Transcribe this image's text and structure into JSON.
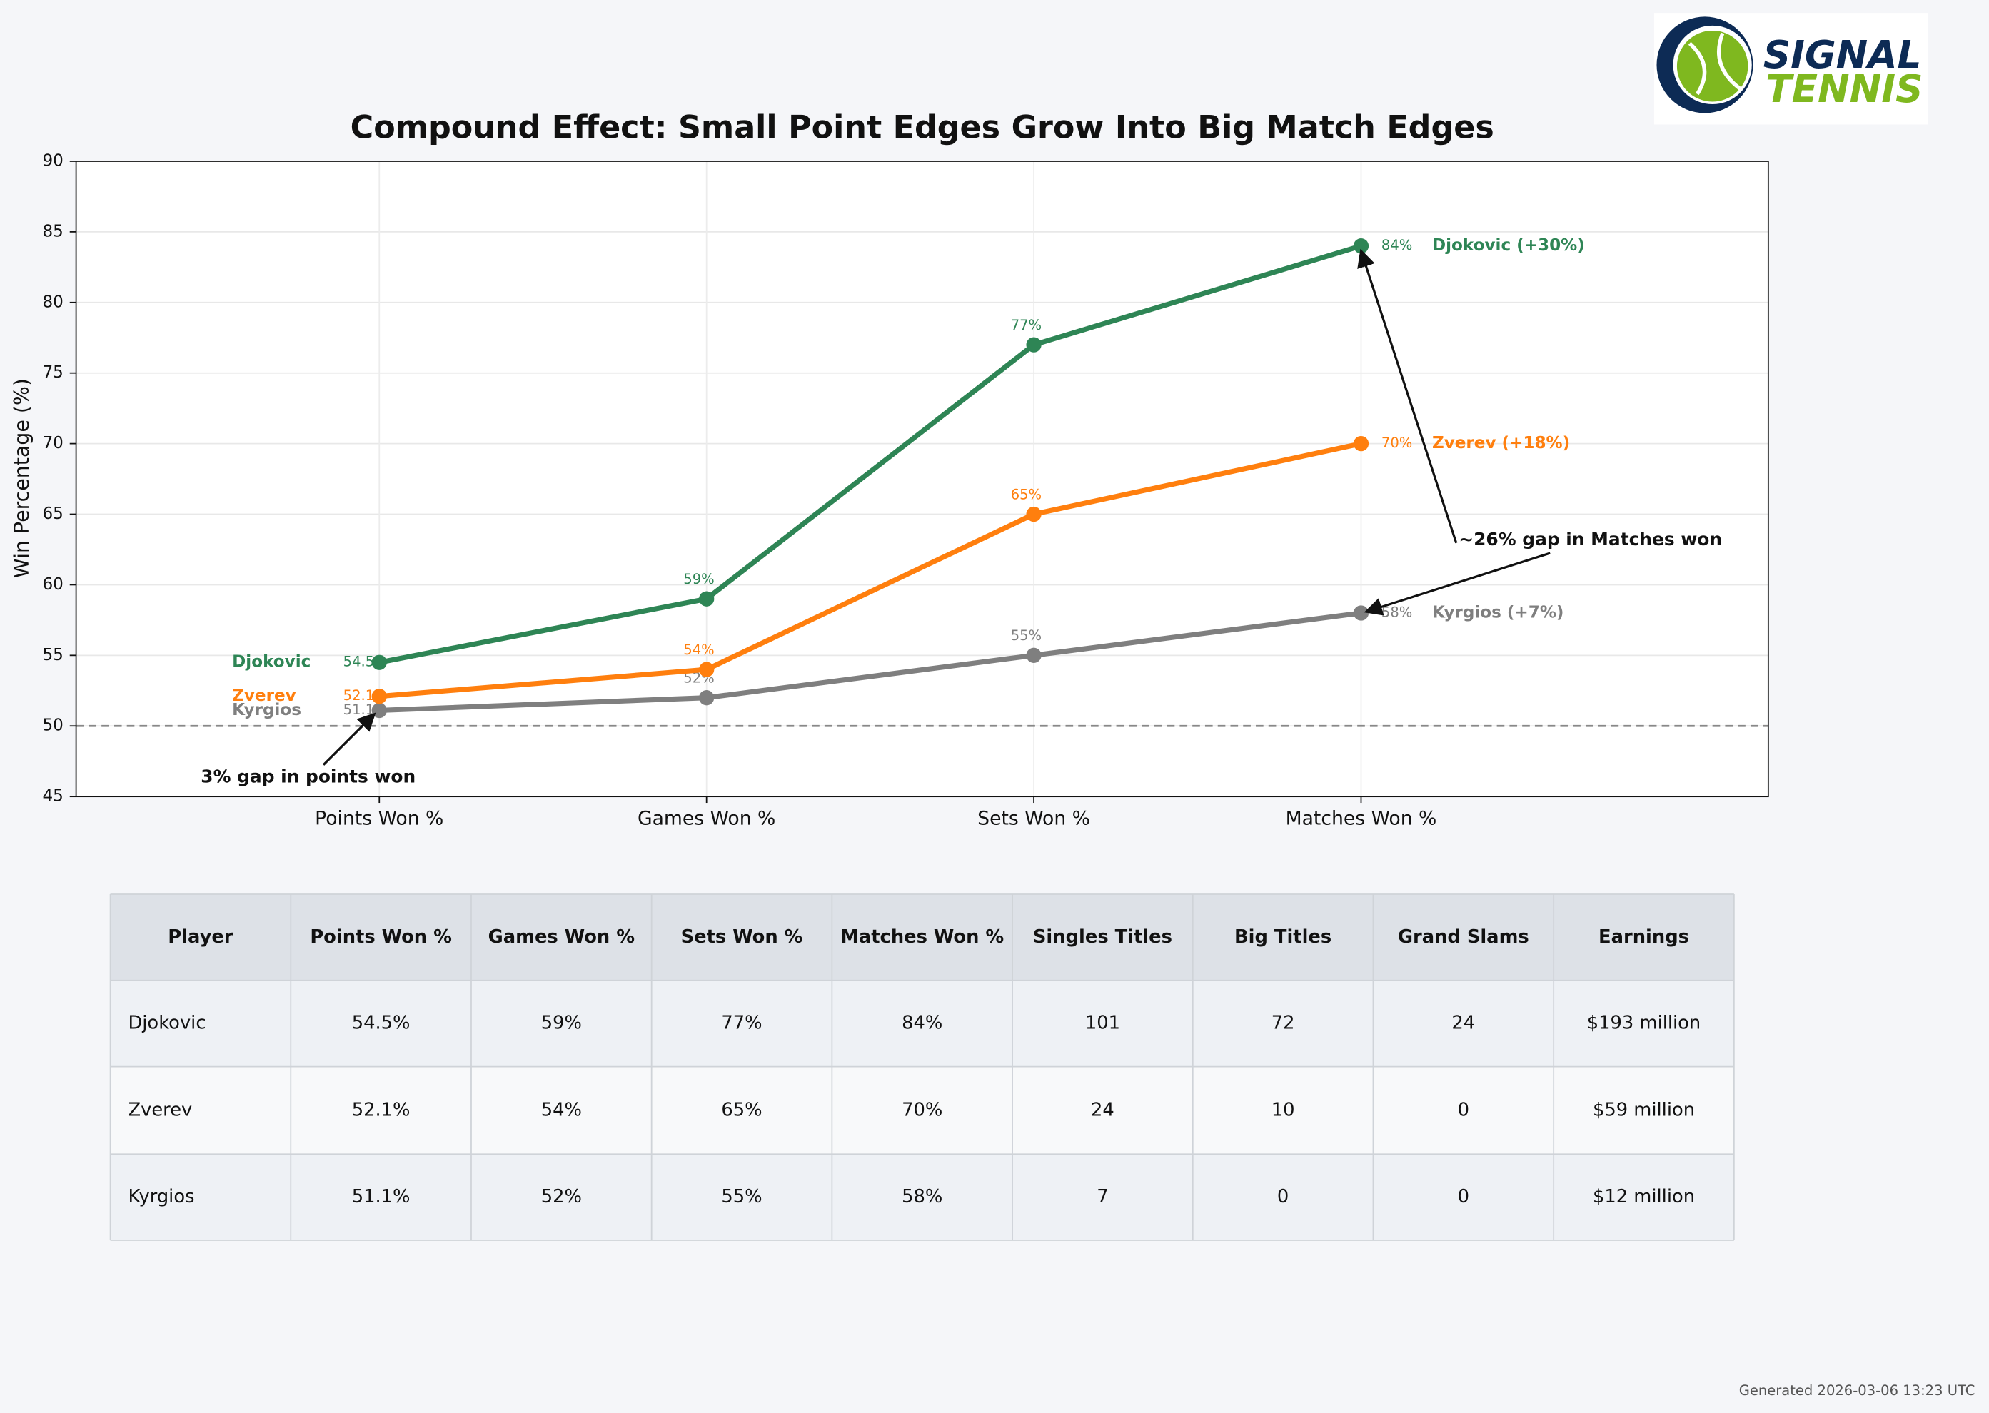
{
  "logo": {
    "line1": "SIGNAL",
    "line2": "TENNIS"
  },
  "chart_data": {
    "type": "line",
    "title": "Compound Effect: Small Point Edges Grow Into Big Match Edges",
    "y_label": "Win Percentage (%)",
    "categories": [
      "Points Won %",
      "Games Won %",
      "Sets Won %",
      "Matches Won %"
    ],
    "series": [
      {
        "name": "Djokovic",
        "color": "#2e8555",
        "values": [
          54.5,
          59,
          77,
          84
        ],
        "value_labels": [
          "54.5",
          "59%",
          "77%",
          "84%"
        ],
        "end_label": "Djokovic (+30%)"
      },
      {
        "name": "Zverev",
        "color": "#ff7f0e",
        "values": [
          52.1,
          54,
          65,
          70
        ],
        "value_labels": [
          "52.1",
          "54%",
          "65%",
          "70%"
        ],
        "end_label": "Zverev (+18%)"
      },
      {
        "name": "Kyrgios",
        "color": "#7f7f7f",
        "values": [
          51.1,
          52,
          55,
          58
        ],
        "value_labels": [
          "51.1",
          "52%",
          "55%",
          "58%"
        ],
        "end_label": "Kyrgios (+7%)"
      }
    ],
    "reference_line": 50,
    "ylim": [
      45,
      90
    ],
    "yticks": [
      45,
      50,
      55,
      60,
      65,
      70,
      75,
      80,
      85,
      90
    ],
    "grid": true,
    "annotations": [
      "3% gap in points won",
      "~26% gap in Matches won"
    ]
  },
  "table": {
    "headers": [
      "Player",
      "Points Won %",
      "Games Won %",
      "Sets Won %",
      "Matches Won %",
      "Singles Titles",
      "Big Titles",
      "Grand Slams",
      "Earnings"
    ],
    "rows": [
      [
        "Djokovic",
        "54.5%",
        "59%",
        "77%",
        "84%",
        "101",
        "72",
        "24",
        "$193 million"
      ],
      [
        "Zverev",
        "52.1%",
        "54%",
        "65%",
        "70%",
        "24",
        "10",
        "0",
        "$59 million"
      ],
      [
        "Kyrgios",
        "51.1%",
        "52%",
        "55%",
        "58%",
        "7",
        "0",
        "0",
        "$12 million"
      ]
    ]
  },
  "footer": "Generated 2026-03-06 13:23 UTC"
}
